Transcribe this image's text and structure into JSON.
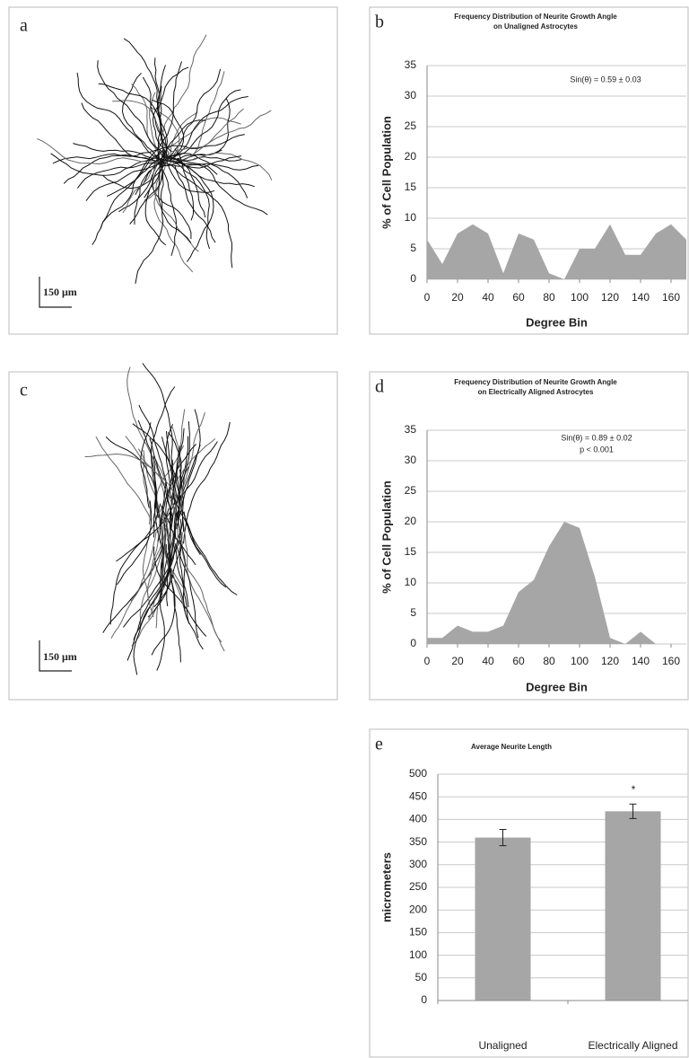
{
  "images": [
    {
      "panel_label": "a",
      "scale_bar": "150 μm"
    },
    {
      "panel_label": "c",
      "scale_bar": "150 μm"
    }
  ],
  "chart_data": [
    {
      "type": "area",
      "panel_label": "b",
      "title": [
        "Frequency Distribution of Neurite Growth Angle",
        "on Unaligned Astrocytes"
      ],
      "annotations": [
        "Sin(θ) = 0.59 ± 0.03"
      ],
      "x_label": "Degree Bin",
      "y_label": "% of Cell Population",
      "x": [
        0,
        10,
        20,
        30,
        40,
        50,
        60,
        70,
        80,
        90,
        100,
        110,
        120,
        130,
        140,
        150,
        160,
        170
      ],
      "values": [
        6.5,
        2.5,
        7.5,
        9,
        7.5,
        1,
        7.5,
        6.5,
        1,
        0,
        5,
        5,
        9,
        4,
        4,
        7.5,
        9,
        6.5
      ],
      "color": "#a6a6a6",
      "xlim": [
        0,
        170
      ],
      "xticks": [
        0,
        20,
        40,
        60,
        80,
        100,
        120,
        140,
        160
      ],
      "ylim": [
        0,
        35
      ],
      "yticks": [
        0,
        5,
        10,
        15,
        20,
        25,
        30,
        35
      ],
      "grid": true
    },
    {
      "type": "area",
      "panel_label": "d",
      "title": [
        "Frequency Distribution of Neurite Growth Angle",
        "on Electrically Aligned Astrocytes"
      ],
      "annotations": [
        "Sin(θ) = 0.89 ± 0.02",
        "p < 0.001"
      ],
      "x_label": "Degree Bin",
      "y_label": "% of Cell Population",
      "x": [
        0,
        10,
        20,
        30,
        40,
        50,
        60,
        70,
        80,
        90,
        100,
        110,
        120,
        130,
        140,
        150,
        160,
        170
      ],
      "values": [
        1,
        1,
        3,
        2,
        2,
        3,
        8.5,
        10.5,
        16,
        20,
        19,
        11,
        1,
        0,
        2,
        0,
        0,
        0
      ],
      "color": "#a6a6a6",
      "xlim": [
        0,
        170
      ],
      "xticks": [
        0,
        20,
        40,
        60,
        80,
        100,
        120,
        140,
        160
      ],
      "ylim": [
        0,
        35
      ],
      "yticks": [
        0,
        5,
        10,
        15,
        20,
        25,
        30,
        35
      ],
      "grid": true
    },
    {
      "type": "bar",
      "panel_label": "e",
      "title": [
        "Average Neurite Length"
      ],
      "annotations": [
        "*"
      ],
      "y_label": "micrometers",
      "categories": [
        "Unaligned",
        "Electrically Aligned"
      ],
      "values": [
        360,
        418
      ],
      "errors": [
        18,
        16
      ],
      "color": "#a6a6a6",
      "ylim": [
        0,
        500
      ],
      "yticks": [
        0,
        50,
        100,
        150,
        200,
        250,
        300,
        350,
        400,
        450,
        500
      ],
      "grid": true
    }
  ]
}
